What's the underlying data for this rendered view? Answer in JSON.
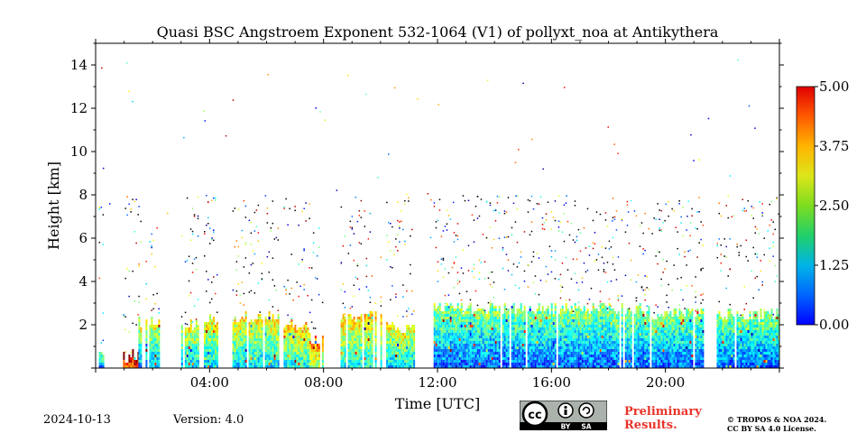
{
  "chart_data": {
    "type": "heatmap",
    "title": "Quasi BSC Angstroem Exponent 532-1064 (V1) of pollyxt_noa at Antikythera",
    "xlabel": "Time [UTC]",
    "ylabel": "Height [km]",
    "xlim_hours": [
      0,
      24
    ],
    "ylim_km": [
      0,
      15
    ],
    "x_ticks": [
      {
        "value": 4,
        "label": "04:00"
      },
      {
        "value": 8,
        "label": "08:00"
      },
      {
        "value": 12,
        "label": "12:00"
      },
      {
        "value": 16,
        "label": "16:00"
      },
      {
        "value": 20,
        "label": "20:00"
      }
    ],
    "y_ticks": [
      {
        "value": 2,
        "label": "2"
      },
      {
        "value": 4,
        "label": "4"
      },
      {
        "value": 6,
        "label": "6"
      },
      {
        "value": 8,
        "label": "8"
      },
      {
        "value": 10,
        "label": "10"
      },
      {
        "value": 12,
        "label": "12"
      },
      {
        "value": 14,
        "label": "14"
      }
    ],
    "colorbar": {
      "range": [
        0.0,
        5.0
      ],
      "ticks": [
        {
          "value": 0.0,
          "label": "0.00"
        },
        {
          "value": 1.25,
          "label": "1.25"
        },
        {
          "value": 2.5,
          "label": "2.50"
        },
        {
          "value": 3.75,
          "label": "3.75"
        },
        {
          "value": 5.0,
          "label": "5.00"
        }
      ],
      "colormap": "jet"
    },
    "grid": false,
    "profile_segments": [
      {
        "t_start": 0.05,
        "t_end": 0.3,
        "top_km": 0.7,
        "base_value": 1.0
      },
      {
        "t_start": 0.9,
        "t_end": 1.5,
        "top_km": 0.6,
        "base_value": 3.5
      },
      {
        "t_start": 1.5,
        "t_end": 2.3,
        "top_km": 2.2,
        "base_value": 1.4
      },
      {
        "t_start": 3.0,
        "t_end": 3.6,
        "top_km": 2.0,
        "base_value": 1.5
      },
      {
        "t_start": 3.8,
        "t_end": 4.3,
        "top_km": 2.3,
        "base_value": 1.6
      },
      {
        "t_start": 4.8,
        "t_end": 6.4,
        "top_km": 2.4,
        "base_value": 1.6
      },
      {
        "t_start": 6.6,
        "t_end": 7.5,
        "top_km": 2.0,
        "base_value": 1.8
      },
      {
        "t_start": 7.5,
        "t_end": 8.0,
        "top_km": 1.3,
        "base_value": 2.3
      },
      {
        "t_start": 8.6,
        "t_end": 10.0,
        "top_km": 2.5,
        "base_value": 1.8
      },
      {
        "t_start": 10.2,
        "t_end": 11.2,
        "top_km": 2.0,
        "base_value": 1.6
      },
      {
        "t_start": 11.8,
        "t_end": 19.2,
        "top_km": 2.8,
        "base_value": 1.0
      },
      {
        "t_start": 19.2,
        "t_end": 21.3,
        "top_km": 2.6,
        "base_value": 1.0
      },
      {
        "t_start": 21.8,
        "t_end": 24.0,
        "top_km": 2.5,
        "base_value": 1.0
      }
    ]
  },
  "footer": {
    "date": "2024-10-13",
    "version": "Version: 4.0",
    "preliminary_line1": "Preliminary",
    "preliminary_line2": "Results.",
    "copyright_line1": "© TROPOS & NOA 2024.",
    "copyright_line2": "CC BY SA 4.0 License.",
    "license_badge": {
      "cc": "cc",
      "by": "BY",
      "sa": "SA",
      "icon": "creative-commons-icon"
    }
  }
}
